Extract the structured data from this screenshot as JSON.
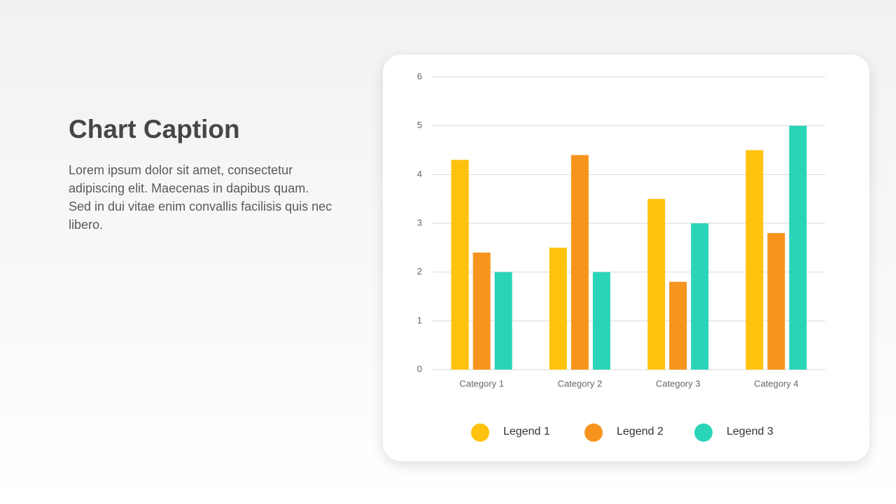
{
  "caption": {
    "title": "Chart Caption",
    "body": "Lorem ipsum dolor sit amet, consectetur adipiscing elit. Maecenas  in dapibus quam. Sed in dui vitae enim convallis facilisis quis nec libero."
  },
  "chart_data": {
    "type": "bar",
    "categories": [
      "Category 1",
      "Category 2",
      "Category 3",
      "Category 4"
    ],
    "series": [
      {
        "name": "Legend 1",
        "color": "#ffc20e",
        "values": [
          4.3,
          2.5,
          3.5,
          4.5
        ]
      },
      {
        "name": "Legend 2",
        "color": "#f7941d",
        "values": [
          2.4,
          4.4,
          1.8,
          2.8
        ]
      },
      {
        "name": "Legend 3",
        "color": "#2ad4b7",
        "values": [
          2,
          2,
          3,
          5
        ]
      }
    ],
    "ylim": [
      0,
      6
    ],
    "yticks": [
      0,
      1,
      2,
      3,
      4,
      5,
      6
    ],
    "grid": true
  }
}
